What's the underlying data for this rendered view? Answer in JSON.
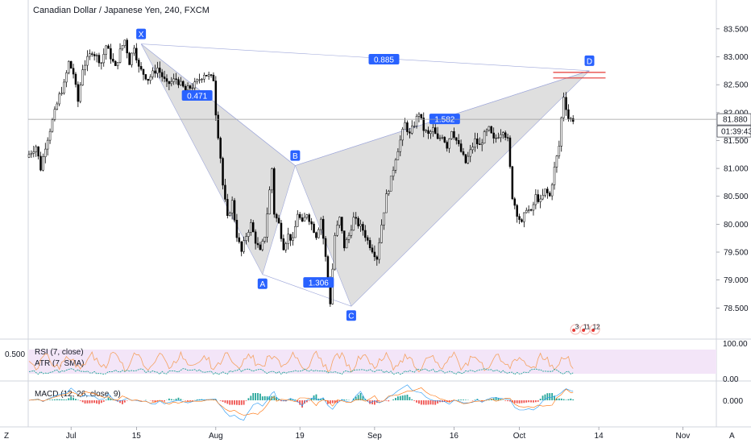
{
  "header": {
    "title": "Canadian Dollar / Japanese Yen, 240, FXCM"
  },
  "chart_data": {
    "type": "candlestick",
    "title": "Canadian Dollar / Japanese Yen, 240, FXCM",
    "ylim": [
      78.1,
      83.7
    ],
    "price_ticks": [
      "83.500",
      "83.000",
      "82.500",
      "82.000",
      "81.500",
      "81.000",
      "80.500",
      "80.000",
      "79.500",
      "79.000",
      "78.500"
    ],
    "price_tick_values": [
      83.5,
      83.0,
      82.5,
      82.0,
      81.5,
      81.0,
      80.5,
      80.0,
      79.5,
      79.0,
      78.5
    ],
    "date_labels": [
      "Jul",
      "15",
      "Aug",
      "19",
      "Sep",
      "16",
      "Oct",
      "14",
      "Nov"
    ],
    "date_label_days": [
      9,
      23,
      40,
      58,
      74,
      91,
      105,
      122,
      140
    ],
    "x_range_days": [
      0,
      147
    ],
    "current_price": "81.880",
    "countdown": "01:39:43",
    "price_path": [
      [
        0,
        81.2
      ],
      [
        2,
        81.4
      ],
      [
        3,
        81.0
      ],
      [
        4,
        81.4
      ],
      [
        6,
        82.0
      ],
      [
        7,
        82.3
      ],
      [
        8,
        82.5
      ],
      [
        9,
        82.9
      ],
      [
        10,
        82.7
      ],
      [
        11,
        82.2
      ],
      [
        12,
        82.8
      ],
      [
        14,
        83.1
      ],
      [
        16,
        82.9
      ],
      [
        17,
        83.2
      ],
      [
        19,
        82.8
      ],
      [
        20,
        83.1
      ],
      [
        21,
        83.3
      ],
      [
        22,
        82.9
      ],
      [
        23,
        83.2
      ],
      [
        24,
        82.8
      ],
      [
        26,
        82.6
      ],
      [
        28,
        82.8
      ],
      [
        30,
        82.5
      ],
      [
        32,
        82.6
      ],
      [
        34,
        82.4
      ],
      [
        36,
        82.5
      ],
      [
        38,
        82.7
      ],
      [
        40,
        82.6
      ],
      [
        40.5,
        82.0
      ],
      [
        41.5,
        81.2
      ],
      [
        42,
        80.7
      ],
      [
        43,
        80.1
      ],
      [
        44,
        80.4
      ],
      [
        45,
        79.8
      ],
      [
        46,
        79.5
      ],
      [
        47,
        79.8
      ],
      [
        48,
        80.0
      ],
      [
        49,
        79.7
      ],
      [
        50,
        79.5
      ],
      [
        51,
        79.8
      ],
      [
        52,
        80.6
      ],
      [
        52.5,
        81.0
      ],
      [
        53,
        80.2
      ],
      [
        54,
        80.0
      ],
      [
        55,
        79.6
      ],
      [
        56,
        79.8
      ],
      [
        57,
        79.7
      ],
      [
        58,
        80.2
      ],
      [
        59,
        80.0
      ],
      [
        60,
        80.2
      ],
      [
        61,
        80.0
      ],
      [
        62,
        79.8
      ],
      [
        63,
        80.1
      ],
      [
        64,
        79.4
      ],
      [
        65,
        78.6
      ],
      [
        66,
        79.8
      ],
      [
        67,
        80.1
      ],
      [
        68,
        79.6
      ],
      [
        69,
        79.8
      ],
      [
        70,
        80.1
      ],
      [
        72,
        79.9
      ],
      [
        73,
        79.7
      ],
      [
        75,
        79.4
      ],
      [
        76,
        80.0
      ],
      [
        77,
        80.5
      ],
      [
        78,
        80.8
      ],
      [
        79,
        81.2
      ],
      [
        80,
        81.5
      ],
      [
        81,
        81.8
      ],
      [
        82,
        81.6
      ],
      [
        83,
        81.8
      ],
      [
        84,
        82.0
      ],
      [
        85,
        81.7
      ],
      [
        86,
        81.6
      ],
      [
        87,
        81.7
      ],
      [
        88,
        81.5
      ],
      [
        89,
        81.6
      ],
      [
        90,
        81.4
      ],
      [
        91,
        81.7
      ],
      [
        92,
        81.5
      ],
      [
        93,
        81.3
      ],
      [
        94,
        81.1
      ],
      [
        95,
        81.3
      ],
      [
        96,
        81.5
      ],
      [
        97,
        81.4
      ],
      [
        98,
        81.6
      ],
      [
        99,
        81.7
      ],
      [
        100,
        81.5
      ],
      [
        101,
        81.6
      ],
      [
        102,
        81.7
      ],
      [
        103,
        81.5
      ],
      [
        104,
        80.5
      ],
      [
        105,
        80.2
      ],
      [
        106,
        80.0
      ],
      [
        107,
        80.3
      ],
      [
        108,
        80.2
      ],
      [
        109,
        80.5
      ],
      [
        110,
        80.4
      ],
      [
        111,
        80.6
      ],
      [
        112,
        80.5
      ],
      [
        113,
        81.0
      ],
      [
        114,
        81.4
      ],
      [
        114.5,
        81.9
      ],
      [
        115,
        82.3
      ],
      [
        116,
        81.9
      ],
      [
        116.5,
        81.88
      ]
    ],
    "harmonic_pattern": {
      "points": [
        {
          "label": "X",
          "day": 24,
          "price": 83.23
        },
        {
          "label": "A",
          "day": 50,
          "price": 79.1
        },
        {
          "label": "B",
          "day": 57,
          "price": 81.05
        },
        {
          "label": "C",
          "day": 69,
          "price": 78.53
        },
        {
          "label": "D",
          "day": 120,
          "price": 82.75
        }
      ],
      "ratios": [
        {
          "label": "0.471",
          "day": 36,
          "price": 82.3
        },
        {
          "label": "1.306",
          "day": 62,
          "price": 78.95
        },
        {
          "label": "0.885",
          "day": 76,
          "price": 82.95
        },
        {
          "label": "1.582",
          "day": 89,
          "price": 81.88
        }
      ],
      "target_lines": [
        82.72,
        82.62
      ]
    },
    "event_markers": [
      "3",
      "11",
      "12"
    ]
  },
  "indicators": {
    "rsi": {
      "label": "RSI (7, close)",
      "ticks": [
        "100.00",
        "0.00"
      ],
      "band_color": "#f3e5f8",
      "line_color": "#f4a261"
    },
    "atr": {
      "label": "ATR (7, SMA)",
      "value": "0.500",
      "line_color": "#26a69a"
    },
    "macd": {
      "label": "MACD (12, 26, close, 9)",
      "tick": "0.000",
      "hist_up_color": "#26a69a",
      "hist_down_color": "#ef5350"
    }
  },
  "footer": {
    "left_button": "Z",
    "right_button": "A"
  },
  "colors": {
    "pattern_fill": "#d9d9d9",
    "pattern_line": "#9fa8da",
    "label_bg": "#2962ff",
    "target": "#e53935",
    "candle": "#000000"
  }
}
